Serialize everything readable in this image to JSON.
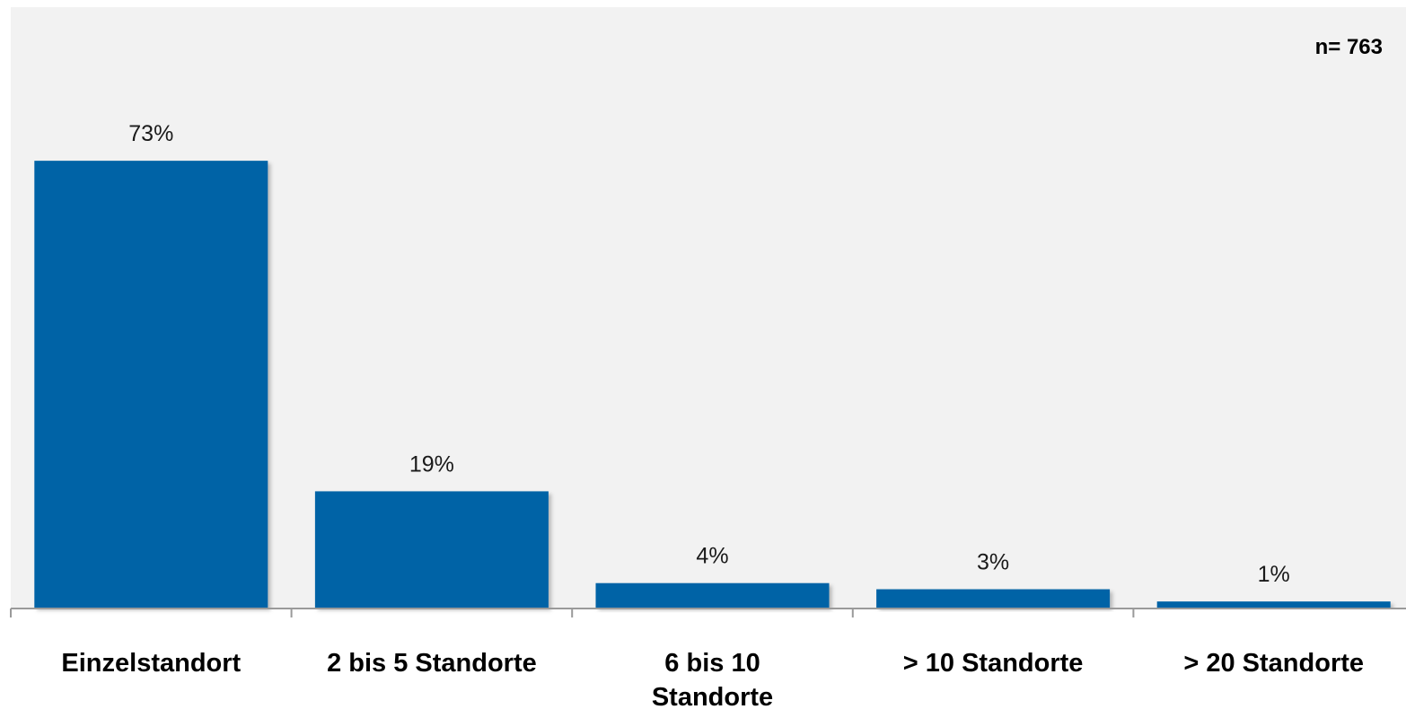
{
  "annotation": "n= 763",
  "colors": {
    "bar": "#0063a6",
    "plot_background": "#f2f2f2",
    "axis": "#9a9a9a"
  },
  "chart_data": {
    "type": "bar",
    "categories": [
      "Einzelstandort",
      "2 bis 5 Standorte",
      "6 bis 10 Standorte",
      "> 10 Standorte",
      "> 20 Standorte"
    ],
    "category_lines": [
      [
        "Einzelstandort"
      ],
      [
        "2 bis 5 Standorte"
      ],
      [
        "6 bis 10",
        "Standorte"
      ],
      [
        "> 10 Standorte"
      ],
      [
        "> 20 Standorte"
      ]
    ],
    "values": [
      73,
      19,
      4,
      3,
      1
    ],
    "value_labels": [
      "73%",
      "19%",
      "4%",
      "3%",
      "1%"
    ],
    "unit": "%",
    "title": "",
    "xlabel": "",
    "ylabel": "",
    "ylim": [
      0,
      100
    ],
    "grid": false,
    "legend": "none"
  }
}
